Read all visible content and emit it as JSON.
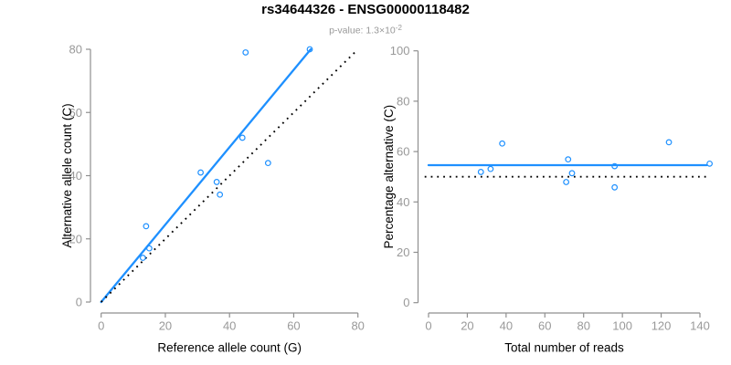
{
  "header": {
    "title": "rs34644326 - ENSG00000118482",
    "p_value_label": "p-value: 1.3×10",
    "p_value_exponent": "-2"
  },
  "colors": {
    "series_blue": "#1E90FF",
    "axis_line_gray": "#8f8f8f",
    "tick_label_gray": "#999999",
    "axis_title_black": "#000000",
    "reference_line_black": "#000000"
  },
  "chart_data": [
    {
      "type": "scatter",
      "panel": "left",
      "xlabel": "Reference allele count (G)",
      "ylabel": "Alternative allele count (C)",
      "xlim": [
        0,
        80
      ],
      "ylim": [
        0,
        80
      ],
      "xticks": [
        0,
        20,
        40,
        60,
        80
      ],
      "yticks": [
        0,
        20,
        40,
        60,
        80
      ],
      "grid": false,
      "points": [
        [
          13,
          14
        ],
        [
          14,
          24
        ],
        [
          15,
          17
        ],
        [
          31,
          41
        ],
        [
          36,
          38
        ],
        [
          37,
          34
        ],
        [
          44,
          52
        ],
        [
          45,
          79
        ],
        [
          52,
          44
        ],
        [
          65,
          80
        ]
      ],
      "lines": [
        {
          "name": "fitted-line",
          "style": "solid",
          "color": "#1E90FF",
          "from": [
            0,
            0
          ],
          "to": [
            65.3,
            80
          ]
        },
        {
          "name": "identity-line",
          "style": "dotted",
          "color": "#000000",
          "from": [
            0,
            0
          ],
          "to": [
            79.5,
            79.5
          ]
        }
      ]
    },
    {
      "type": "scatter",
      "panel": "right",
      "xlabel": "Total number of reads",
      "ylabel": "Percentage alternative (C)",
      "xlim": [
        0,
        145
      ],
      "ylim": [
        0,
        100
      ],
      "xticks": [
        0,
        20,
        40,
        60,
        80,
        100,
        120,
        140
      ],
      "yticks": [
        0,
        20,
        40,
        60,
        80,
        100
      ],
      "grid": false,
      "points": [
        [
          27,
          51.9
        ],
        [
          32,
          53.1
        ],
        [
          38,
          63.2
        ],
        [
          71,
          47.9
        ],
        [
          72,
          56.9
        ],
        [
          74,
          51.4
        ],
        [
          96,
          45.8
        ],
        [
          96,
          54.2
        ],
        [
          124,
          63.7
        ],
        [
          145,
          55.2
        ]
      ],
      "lines": [
        {
          "name": "mean-percentage-line",
          "style": "solid",
          "color": "#1E90FF",
          "from": [
            0,
            54.6
          ],
          "to": [
            143.5,
            54.6
          ]
        },
        {
          "name": "fifty-percent-line",
          "style": "dotted",
          "color": "#000000",
          "from": [
            -2,
            50
          ],
          "to": [
            145,
            50
          ]
        }
      ]
    }
  ]
}
